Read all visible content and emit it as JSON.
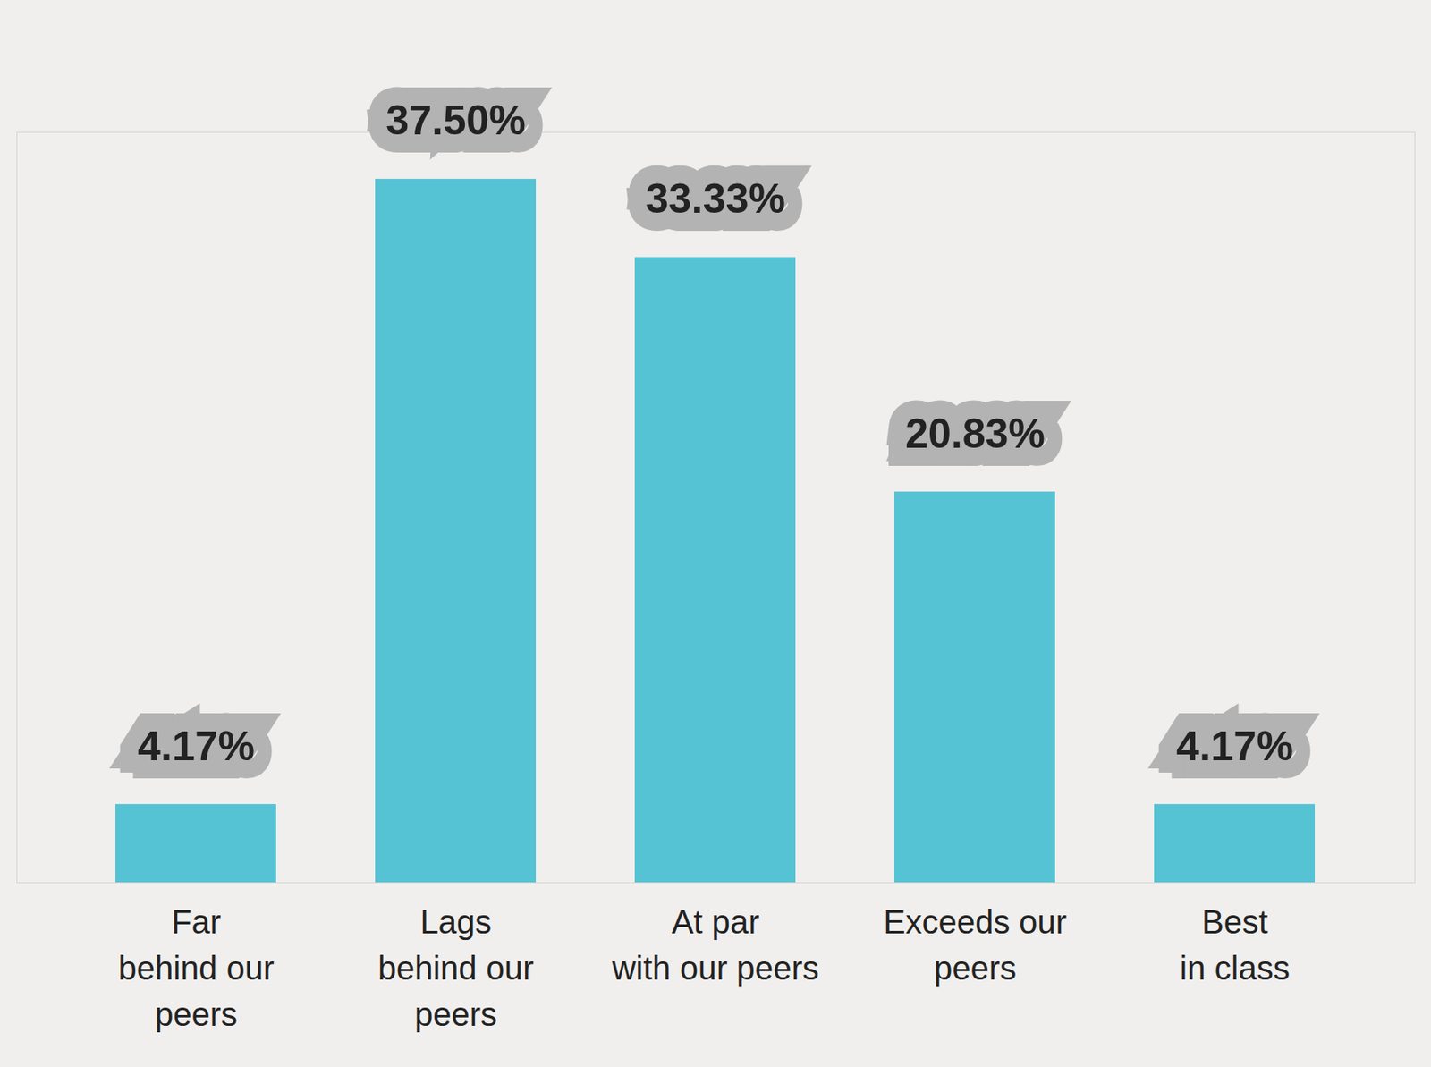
{
  "chart_data": {
    "type": "bar",
    "categories": [
      "Far\nbehind our\npeers",
      "Lags\nbehind our\npeers",
      "At par\nwith our peers",
      "Exceeds our\npeers",
      "Best\nin class"
    ],
    "values": [
      4.17,
      37.5,
      33.33,
      20.83,
      4.17
    ],
    "value_labels": [
      "4.17%",
      "37.50%",
      "33.33%",
      "20.83%",
      "4.17%"
    ],
    "data_labels": true,
    "color": "#55c3d4",
    "ylim": [
      0,
      40
    ],
    "yticks": [],
    "tick_labels": "x",
    "grid": false
  }
}
